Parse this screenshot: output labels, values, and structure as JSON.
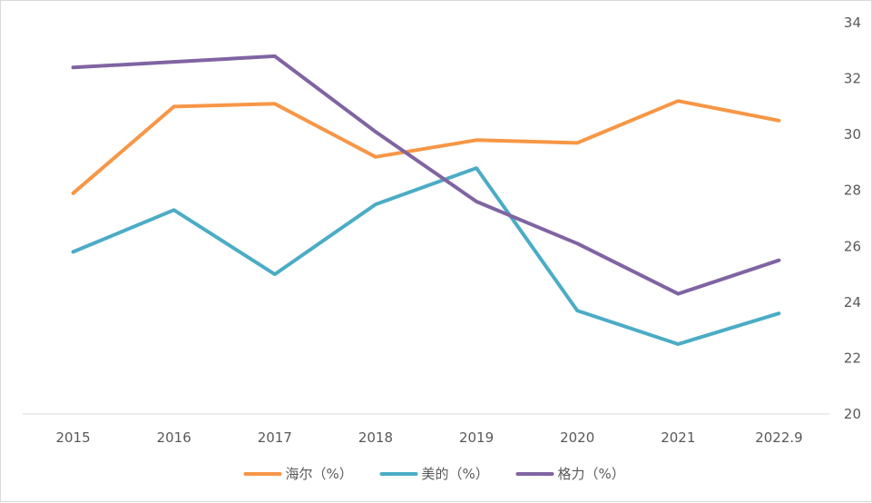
{
  "chart_data": {
    "type": "line",
    "categories": [
      "2015",
      "2016",
      "2017",
      "2018",
      "2019",
      "2020",
      "2021",
      "2022.9"
    ],
    "series": [
      {
        "name": "海尔（%）",
        "color": "#f79646",
        "values": [
          27.9,
          31.0,
          31.1,
          29.2,
          29.8,
          29.7,
          31.2,
          30.5
        ]
      },
      {
        "name": "美的（%）",
        "color": "#4bacc6",
        "values": [
          25.8,
          27.3,
          25.0,
          27.5,
          28.8,
          23.7,
          22.5,
          23.6
        ]
      },
      {
        "name": "格力（%）",
        "color": "#8064a2",
        "values": [
          32.4,
          32.6,
          32.8,
          30.1,
          27.6,
          26.1,
          24.3,
          25.5
        ]
      }
    ],
    "y_axis": {
      "position": "right",
      "min": 20,
      "max": 34,
      "ticks": [
        20,
        22,
        24,
        26,
        28,
        30,
        32,
        34
      ]
    },
    "grid": false,
    "legend_position": "bottom"
  }
}
